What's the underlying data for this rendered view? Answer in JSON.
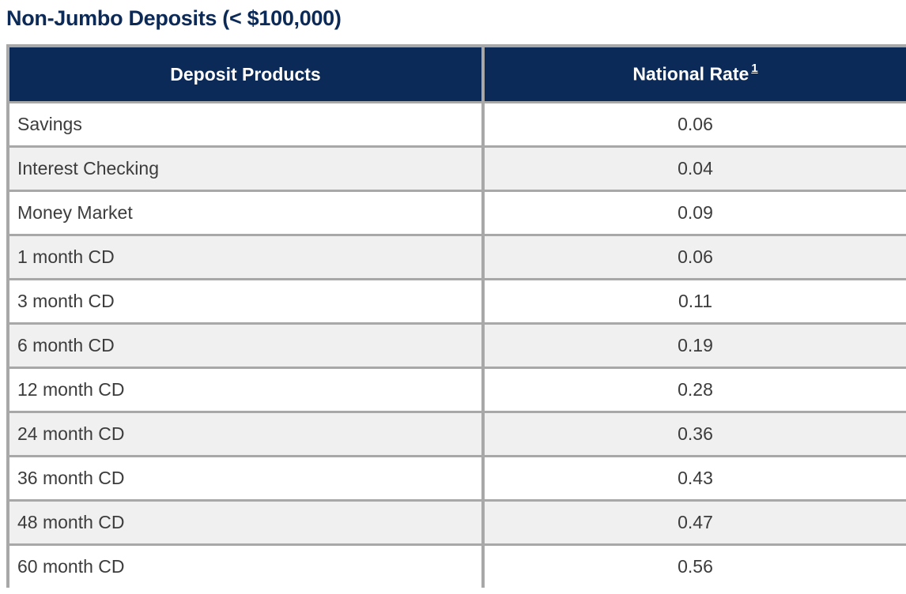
{
  "title": "Non-Jumbo Deposits (< $100,000)",
  "table": {
    "headers": {
      "product": "Deposit Products",
      "rate": "National Rate",
      "rate_footnote": "1"
    },
    "rows": [
      {
        "product": "Savings",
        "rate": "0.06"
      },
      {
        "product": "Interest Checking",
        "rate": "0.04"
      },
      {
        "product": "Money Market",
        "rate": "0.09"
      },
      {
        "product": "1 month CD",
        "rate": "0.06"
      },
      {
        "product": "3 month CD",
        "rate": "0.11"
      },
      {
        "product": "6 month CD",
        "rate": "0.19"
      },
      {
        "product": "12 month CD",
        "rate": "0.28"
      },
      {
        "product": "24 month CD",
        "rate": "0.36"
      },
      {
        "product": "36 month CD",
        "rate": "0.43"
      },
      {
        "product": "48 month CD",
        "rate": "0.47"
      },
      {
        "product": "60 month CD",
        "rate": "0.56"
      }
    ]
  },
  "colors": {
    "header_bg": "#0c2a57",
    "title": "#0c2a57",
    "row_alt_bg": "#f0f0f0",
    "border": "#a8a8a8"
  }
}
